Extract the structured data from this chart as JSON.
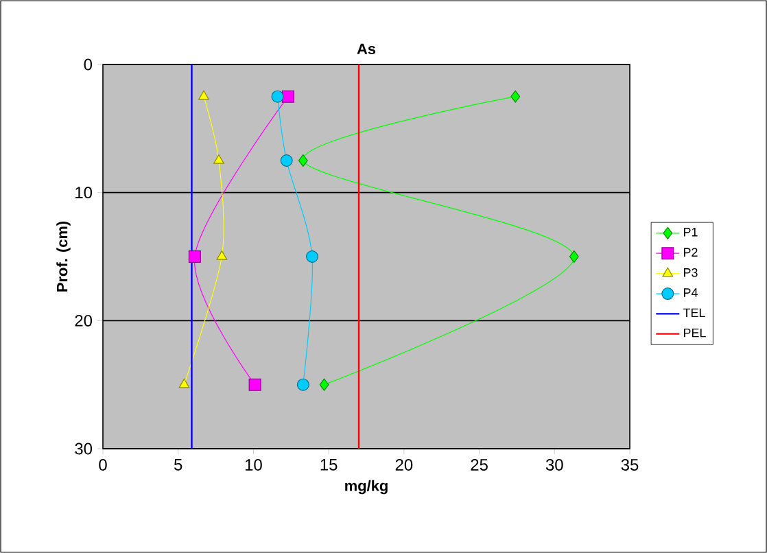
{
  "chart_data": {
    "type": "line",
    "title": "As",
    "xlabel": "mg/kg",
    "ylabel": "Prof. (cm)",
    "xlim": [
      0,
      35
    ],
    "xticks": [
      0,
      5,
      10,
      15,
      20,
      25,
      30,
      35
    ],
    "ylim": [
      30,
      0
    ],
    "yticks": [
      0,
      10,
      20,
      30
    ],
    "grid": "y",
    "legend": "right",
    "series": [
      {
        "name": "P1",
        "color": "#00ff00",
        "marker": "diamond",
        "x": [
          27.4,
          13.3,
          31.3,
          14.7
        ],
        "values": [
          2.5,
          7.5,
          15,
          25
        ]
      },
      {
        "name": "P2",
        "color": "#ff00ff",
        "marker": "square",
        "x": [
          12.3,
          6.1,
          10.1
        ],
        "values": [
          2.5,
          15,
          25
        ]
      },
      {
        "name": "P3",
        "color": "#ffff00",
        "marker": "triangle",
        "x": [
          6.7,
          7.7,
          7.9,
          5.4
        ],
        "values": [
          2.5,
          7.5,
          15,
          25
        ]
      },
      {
        "name": "P4",
        "color": "#00ccff",
        "marker": "circle",
        "x": [
          11.6,
          12.2,
          13.9,
          13.3
        ],
        "values": [
          2.5,
          7.5,
          15,
          25
        ]
      },
      {
        "name": "TEL",
        "color": "#0000ff",
        "marker": "none",
        "x": [
          5.9,
          5.9
        ],
        "values": [
          0,
          30
        ]
      },
      {
        "name": "PEL",
        "color": "#ff0000",
        "marker": "none",
        "x": [
          17.0,
          17.0
        ],
        "values": [
          0,
          30
        ]
      }
    ]
  }
}
